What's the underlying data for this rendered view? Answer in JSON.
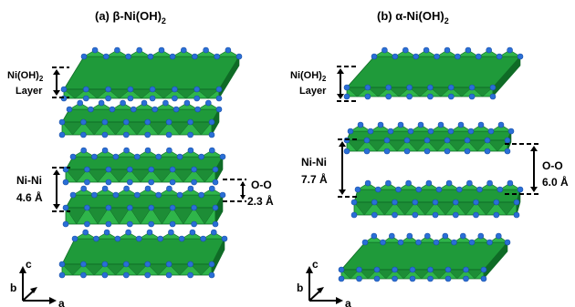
{
  "panels": {
    "a": {
      "title": "(a) β-Ni(OH)",
      "title_sub": "2",
      "layer_label_line1": "Ni(OH)",
      "layer_label_sub": "2",
      "layer_label_line2": "Layer",
      "nini_label": "Ni-Ni",
      "nini_value": "4.6 Å",
      "oo_label": "O-O",
      "oo_value": "2.3 Å",
      "layer_count": 5
    },
    "b": {
      "title": "(b) α-Ni(OH)",
      "title_sub": "2",
      "layer_label_line1": "Ni(OH)",
      "layer_label_sub": "2",
      "layer_label_line2": "Layer",
      "nini_label": "Ni-Ni",
      "nini_value": "7.7 Å",
      "oo_label": "O-O",
      "oo_value": "6.0 Å",
      "layer_count": 4
    }
  },
  "axes": {
    "c": "c",
    "b": "b",
    "a": "a"
  },
  "colors": {
    "octahedron_light": "#2fb54a",
    "octahedron_mid": "#1f9a3a",
    "octahedron_dark": "#0f6b26",
    "atom": "#2a6fd6",
    "atom_edge": "#1a4fa8"
  }
}
